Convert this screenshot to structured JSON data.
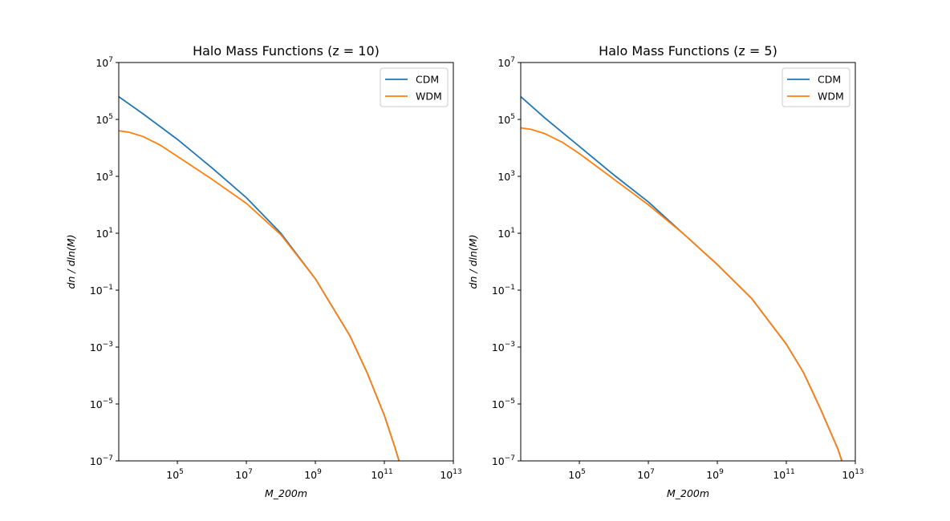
{
  "colors": {
    "cdm": "#1f77b4",
    "wdm": "#ff7f0e",
    "axes": "#000000",
    "legend_border": "#cccccc"
  },
  "chart_data": [
    {
      "type": "line",
      "title": "Halo Mass Functions (z = 10)",
      "xlabel": "M_200m",
      "ylabel": "dn / dln(M)",
      "xscale": "log",
      "yscale": "log",
      "xlim_log10": [
        3.3,
        13
      ],
      "ylim_log10": [
        -7,
        7
      ],
      "xticks": [
        {
          "base": "10",
          "exp": "5",
          "log": 5
        },
        {
          "base": "10",
          "exp": "7",
          "log": 7
        },
        {
          "base": "10",
          "exp": "9",
          "log": 9
        },
        {
          "base": "10",
          "exp": "11",
          "log": 11
        },
        {
          "base": "10",
          "exp": "13",
          "log": 13
        }
      ],
      "yticks": [
        {
          "base": "10",
          "exp": "7",
          "log": 7
        },
        {
          "base": "10",
          "exp": "5",
          "log": 5
        },
        {
          "base": "10",
          "exp": "3",
          "log": 3
        },
        {
          "base": "10",
          "exp": "1",
          "log": 1
        },
        {
          "base": "10",
          "exp": "−1",
          "log": -1
        },
        {
          "base": "10",
          "exp": "−3",
          "log": -3
        },
        {
          "base": "10",
          "exp": "−5",
          "log": -5
        },
        {
          "base": "10",
          "exp": "−7",
          "log": -7
        }
      ],
      "legend": {
        "location": "upper right",
        "entries": [
          "CDM",
          "WDM"
        ]
      },
      "series": [
        {
          "name": "CDM",
          "log_x": [
            3.3,
            4,
            5,
            6,
            7,
            8,
            9,
            10,
            10.5,
            11,
            11.3,
            11.5,
            11.55
          ],
          "log_y": [
            5.8,
            5.2,
            4.3,
            3.3,
            2.25,
            1.0,
            -0.6,
            -2.6,
            -3.9,
            -5.4,
            -6.5,
            -7.3,
            -7.6
          ]
        },
        {
          "name": "WDM",
          "log_x": [
            3.3,
            3.6,
            4,
            4.5,
            5,
            6,
            7,
            8,
            9,
            10,
            10.5,
            11,
            11.3,
            11.5,
            11.55
          ],
          "log_y": [
            4.6,
            4.55,
            4.4,
            4.1,
            3.7,
            2.9,
            2.05,
            0.95,
            -0.6,
            -2.6,
            -3.9,
            -5.4,
            -6.5,
            -7.3,
            -7.6
          ]
        }
      ]
    },
    {
      "type": "line",
      "title": "Halo Mass Functions (z = 5)",
      "xlabel": "M_200m",
      "ylabel": "dn / dln(M)",
      "xscale": "log",
      "yscale": "log",
      "xlim_log10": [
        3.3,
        13
      ],
      "ylim_log10": [
        -7,
        7
      ],
      "xticks": [
        {
          "base": "10",
          "exp": "5",
          "log": 5
        },
        {
          "base": "10",
          "exp": "7",
          "log": 7
        },
        {
          "base": "10",
          "exp": "9",
          "log": 9
        },
        {
          "base": "10",
          "exp": "11",
          "log": 11
        },
        {
          "base": "10",
          "exp": "13",
          "log": 13
        }
      ],
      "yticks": [
        {
          "base": "10",
          "exp": "7",
          "log": 7
        },
        {
          "base": "10",
          "exp": "5",
          "log": 5
        },
        {
          "base": "10",
          "exp": "3",
          "log": 3
        },
        {
          "base": "10",
          "exp": "1",
          "log": 1
        },
        {
          "base": "10",
          "exp": "−1",
          "log": -1
        },
        {
          "base": "10",
          "exp": "−3",
          "log": -3
        },
        {
          "base": "10",
          "exp": "−5",
          "log": -5
        },
        {
          "base": "10",
          "exp": "−7",
          "log": -7
        }
      ],
      "legend": {
        "location": "upper right",
        "entries": [
          "CDM",
          "WDM"
        ]
      },
      "series": [
        {
          "name": "CDM",
          "log_x": [
            3.3,
            4,
            5,
            6,
            7,
            8,
            9,
            10,
            11,
            11.5,
            12,
            12.5,
            12.8,
            12.9
          ],
          "log_y": [
            5.8,
            5.05,
            4.05,
            3.05,
            2.1,
            1.0,
            -0.1,
            -1.3,
            -2.9,
            -3.9,
            -5.2,
            -6.6,
            -7.7,
            -8.1
          ]
        },
        {
          "name": "WDM",
          "log_x": [
            3.3,
            3.6,
            4,
            4.5,
            5,
            6,
            7,
            8,
            9,
            10,
            11,
            11.5,
            12,
            12.5,
            12.8,
            12.9
          ],
          "log_y": [
            4.7,
            4.65,
            4.5,
            4.2,
            3.8,
            2.9,
            2.0,
            1.0,
            -0.1,
            -1.3,
            -2.9,
            -3.9,
            -5.2,
            -6.6,
            -7.7,
            -8.1
          ]
        }
      ]
    }
  ]
}
